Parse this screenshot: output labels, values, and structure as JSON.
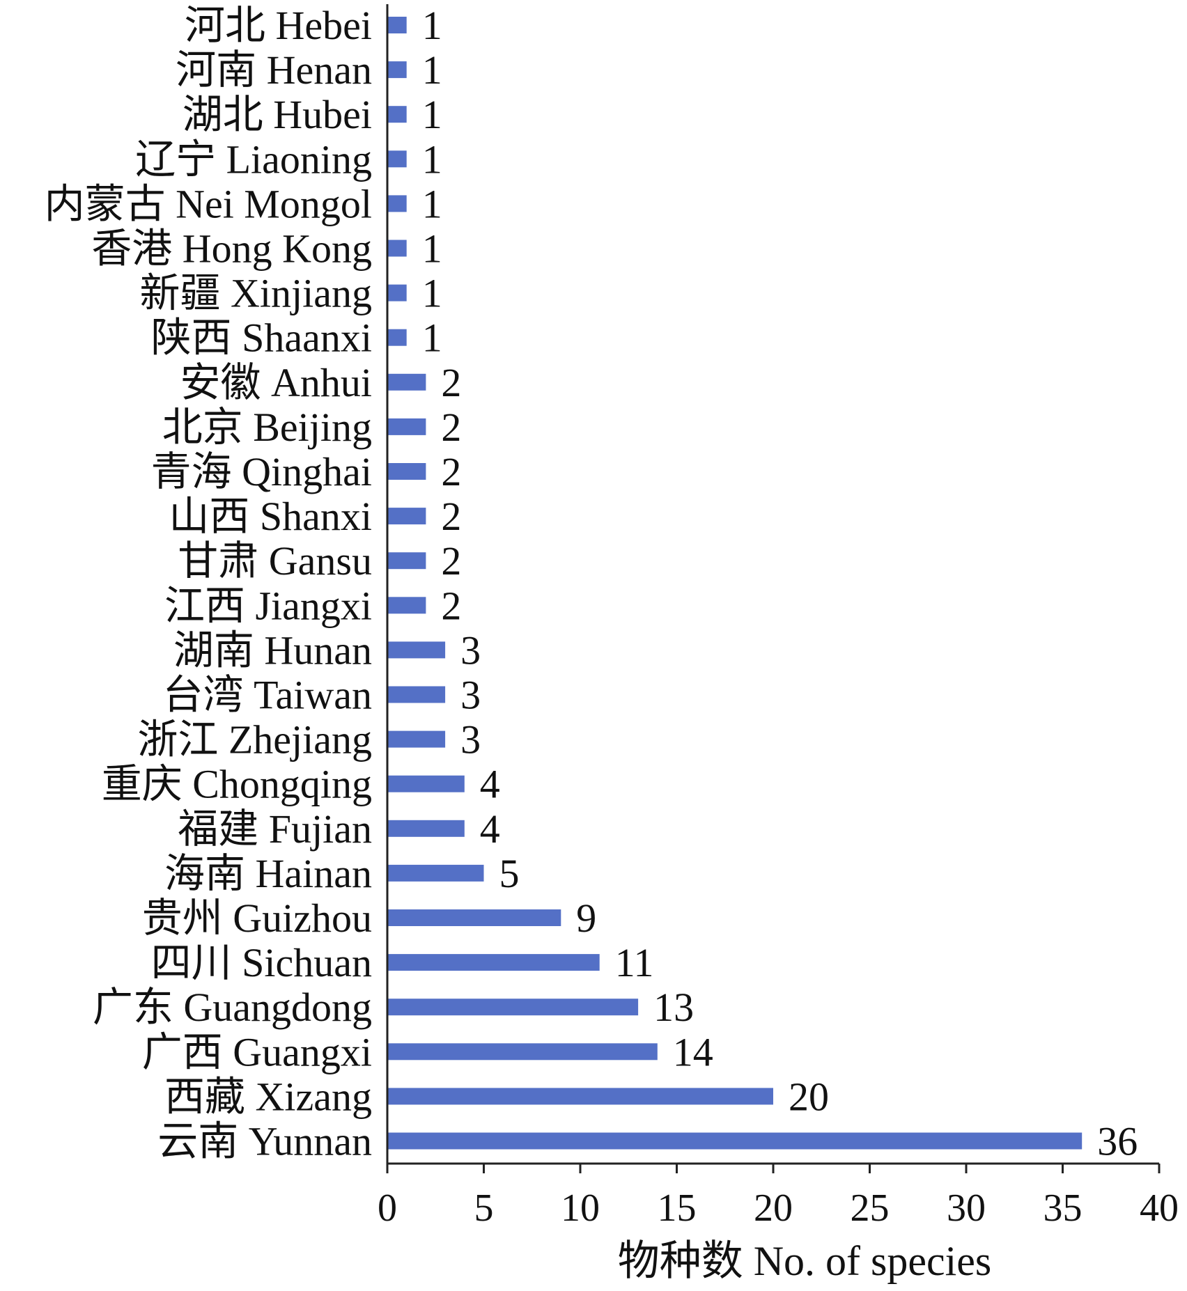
{
  "chart_data": {
    "type": "bar",
    "orientation": "horizontal",
    "categories": [
      "河北 Hebei",
      "河南 Henan",
      "湖北  Hubei",
      "辽宁 Liaoning",
      "内蒙古 Nei Mongol",
      "香港 Hong Kong",
      "新疆 Xinjiang",
      "陕西 Shaanxi",
      "安徽 Anhui",
      "北京 Beijing",
      "青海 Qinghai",
      "山西 Shanxi",
      "甘肃 Gansu",
      "江西 Jiangxi",
      "湖南 Hunan",
      "台湾 Taiwan",
      "浙江 Zhejiang",
      "重庆 Chongqing",
      "福建 Fujian",
      "海南 Hainan",
      "贵州 Guizhou",
      "四川 Sichuan",
      "广东 Guangdong",
      "广西 Guangxi",
      "西藏 Xizang",
      "云南 Yunnan"
    ],
    "values": [
      1,
      1,
      1,
      1,
      1,
      1,
      1,
      1,
      2,
      2,
      2,
      2,
      2,
      2,
      3,
      3,
      3,
      4,
      4,
      5,
      9,
      11,
      13,
      14,
      20,
      36
    ],
    "value_labels": [
      "1",
      "1",
      "1",
      "1",
      "1",
      "1",
      "1",
      "1",
      "2",
      "2",
      "2",
      "2",
      "2",
      "2",
      "3",
      "3",
      "3",
      "4",
      "4",
      "5",
      "9",
      "11",
      "13",
      "14",
      "20",
      "36"
    ],
    "xlabel": "物种数 No. of species",
    "ylabel": "",
    "xlim": [
      0,
      40
    ],
    "xticks": [
      "0",
      "5",
      "10",
      "15",
      "20",
      "25",
      "30",
      "35",
      "40"
    ],
    "bar_color": "#5470C6",
    "grid": false,
    "legend": "none"
  }
}
